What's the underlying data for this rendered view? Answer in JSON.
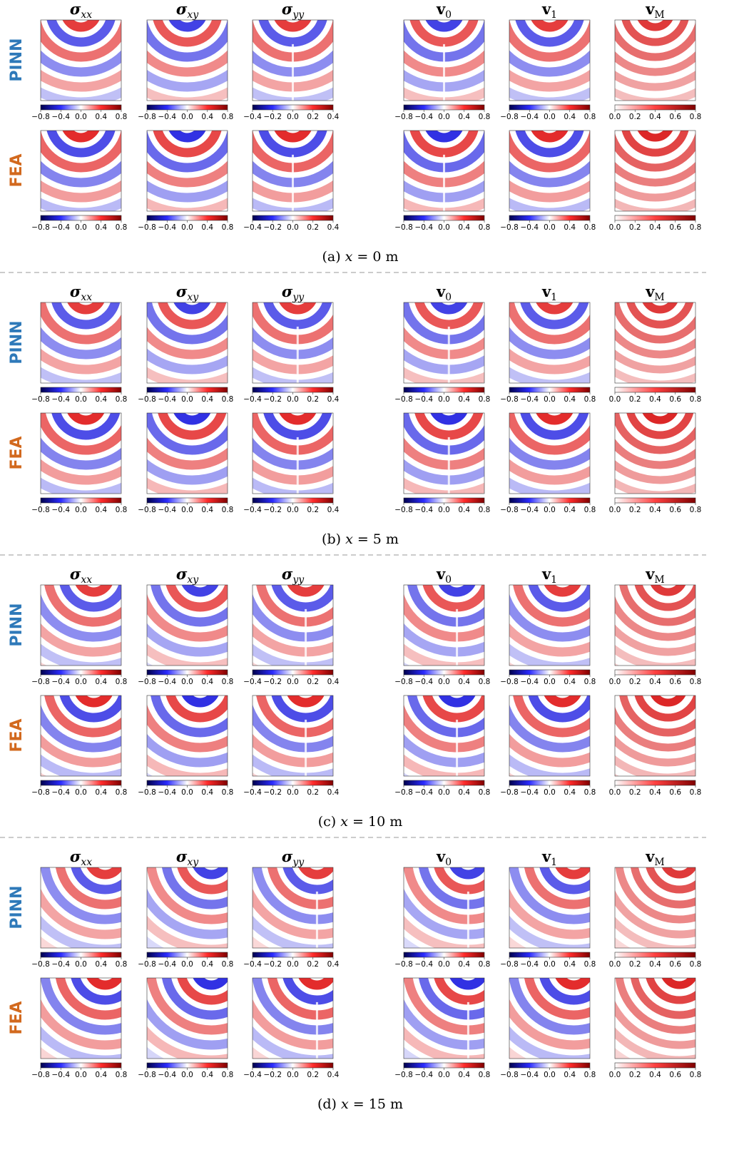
{
  "columns": [
    {
      "symbol": "σ",
      "sub": "xx",
      "ticks": [
        "−0.8",
        "−0.4",
        "0.0",
        "0.4",
        "0.8"
      ]
    },
    {
      "symbol": "σ",
      "sub": "xy",
      "ticks": [
        "−0.8",
        "−0.4",
        "0.0",
        "0.4",
        "0.8"
      ]
    },
    {
      "symbol": "σ",
      "sub": "yy",
      "ticks": [
        "−0.4",
        "−0.2",
        "0.0",
        "0.2",
        "0.4"
      ]
    },
    {
      "symbol": "v",
      "sub": "0",
      "ticks": [
        "−0.8",
        "−0.4",
        "0.0",
        "0.4",
        "0.8"
      ]
    },
    {
      "symbol": "v",
      "sub": "1",
      "ticks": [
        "−0.8",
        "−0.4",
        "0.0",
        "0.4",
        "0.8"
      ]
    },
    {
      "symbol": "v",
      "sub": "M",
      "ticks": [
        "0.0",
        "0.2",
        "0.4",
        "0.6",
        "0.8"
      ]
    }
  ],
  "rows": [
    "PINN",
    "FEA"
  ],
  "sections": [
    {
      "label": "(a)",
      "var": "x",
      "value": "= 0 m"
    },
    {
      "label": "(b)",
      "var": "x",
      "value": "= 5 m"
    },
    {
      "label": "(c)",
      "var": "x",
      "value": "= 10 m"
    },
    {
      "label": "(d)",
      "var": "x",
      "value": "= 15 m"
    }
  ]
}
